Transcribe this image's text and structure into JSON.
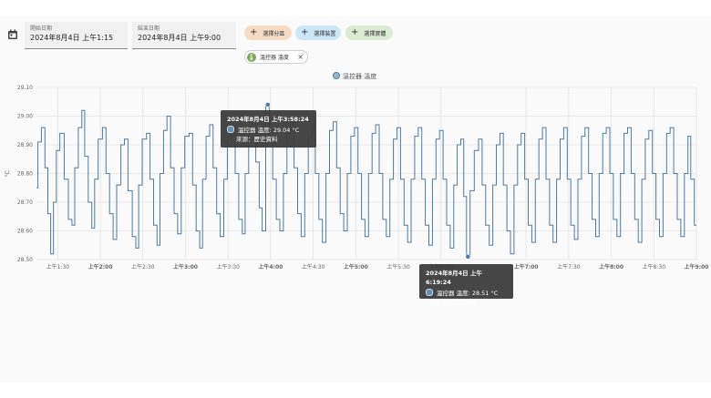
{
  "controls": {
    "start": {
      "label": "開始日期",
      "value": "2024年8月4日 上午1:15"
    },
    "end": {
      "label": "結束日期",
      "value": "2024年8月4日 上午9:00"
    },
    "chips": [
      {
        "label": "選擇分區",
        "icon": "plus-icon",
        "color": "#f6dcc4"
      },
      {
        "label": "選擇裝置",
        "icon": "plus-icon",
        "color": "#cde7f7"
      },
      {
        "label": "選擇實體",
        "icon": "plus-icon",
        "color": "#dcebd4"
      }
    ],
    "selected_entity": {
      "label": "溫控器 溫度",
      "icon": "thermometer-icon",
      "remove": "×"
    }
  },
  "tooltips": [
    {
      "title": "2024年8月4日 上午3:58:24",
      "line1": "溫控器 溫度: 29.04 °C",
      "line2": "來源：歷史資料"
    },
    {
      "title": "2024年8月4日 上午6:19:24",
      "line1": "溫控器 溫度: 28.51 °C",
      "line2": "來源：歷史資料"
    }
  ],
  "chart_data": {
    "type": "line",
    "legend": "溫控器 溫度",
    "legend_position": "top-center",
    "ylabel": "°C",
    "ylim": [
      28.5,
      29.1
    ],
    "y_ticks": [
      "28.50",
      "28.60",
      "28.70",
      "28.80",
      "28.90",
      "29.00",
      "29.10"
    ],
    "x_range": [
      "01:15",
      "09:00"
    ],
    "x_ticks": [
      {
        "t": "01:30",
        "label": "上午1:30",
        "bold": false
      },
      {
        "t": "02:00",
        "label": "上午2:00",
        "bold": true
      },
      {
        "t": "02:30",
        "label": "上午2:30",
        "bold": false
      },
      {
        "t": "03:00",
        "label": "上午3:00",
        "bold": true
      },
      {
        "t": "03:30",
        "label": "上午3:30",
        "bold": false
      },
      {
        "t": "04:00",
        "label": "上午4:00",
        "bold": true
      },
      {
        "t": "04:30",
        "label": "上午4:30",
        "bold": false
      },
      {
        "t": "05:00",
        "label": "上午5:00",
        "bold": true
      },
      {
        "t": "05:30",
        "label": "上午5:30",
        "bold": false
      },
      {
        "t": "06:00",
        "label": "上午6:00",
        "bold": true
      },
      {
        "t": "07:00",
        "label": "上午7:00",
        "bold": true
      },
      {
        "t": "07:30",
        "label": "上午7:30",
        "bold": false
      },
      {
        "t": "08:00",
        "label": "上午8:00",
        "bold": true
      },
      {
        "t": "08:30",
        "label": "上午8:30",
        "bold": false
      },
      {
        "t": "09:00",
        "label": "上午9:00",
        "bold": true
      }
    ],
    "series": [
      {
        "name": "溫控器 溫度",
        "color": "#4f7a9e",
        "points": [
          [
            "01:15",
            28.75
          ],
          [
            "01:17",
            28.91
          ],
          [
            "01:20",
            28.96
          ],
          [
            "01:22",
            28.82
          ],
          [
            "01:24",
            28.66
          ],
          [
            "01:26",
            28.52
          ],
          [
            "01:28",
            28.7
          ],
          [
            "01:30",
            28.88
          ],
          [
            "01:33",
            28.94
          ],
          [
            "01:36",
            28.78
          ],
          [
            "01:39",
            28.64
          ],
          [
            "01:41",
            28.62
          ],
          [
            "01:43",
            28.82
          ],
          [
            "01:46",
            28.96
          ],
          [
            "01:48",
            29.02
          ],
          [
            "01:50",
            28.86
          ],
          [
            "01:53",
            28.7
          ],
          [
            "01:55",
            28.61
          ],
          [
            "01:57",
            28.78
          ],
          [
            "02:00",
            28.92
          ],
          [
            "02:03",
            28.96
          ],
          [
            "02:05",
            28.8
          ],
          [
            "02:08",
            28.66
          ],
          [
            "02:10",
            28.57
          ],
          [
            "02:13",
            28.76
          ],
          [
            "02:16",
            28.9
          ],
          [
            "02:18",
            28.92
          ],
          [
            "02:21",
            28.74
          ],
          [
            "02:24",
            28.58
          ],
          [
            "02:26",
            28.54
          ],
          [
            "02:28",
            28.76
          ],
          [
            "02:31",
            28.92
          ],
          [
            "02:34",
            28.94
          ],
          [
            "02:36",
            28.78
          ],
          [
            "02:39",
            28.62
          ],
          [
            "02:41",
            28.55
          ],
          [
            "02:43",
            28.8
          ],
          [
            "02:46",
            28.95
          ],
          [
            "02:48",
            29.0
          ],
          [
            "02:51",
            28.82
          ],
          [
            "02:53",
            28.66
          ],
          [
            "02:56",
            28.59
          ],
          [
            "02:58",
            28.82
          ],
          [
            "03:01",
            28.93
          ],
          [
            "03:04",
            28.94
          ],
          [
            "03:06",
            28.76
          ],
          [
            "03:09",
            28.6
          ],
          [
            "03:11",
            28.54
          ],
          [
            "03:13",
            28.78
          ],
          [
            "03:16",
            28.93
          ],
          [
            "03:18",
            28.97
          ],
          [
            "03:21",
            28.82
          ],
          [
            "03:23",
            28.66
          ],
          [
            "03:26",
            28.58
          ],
          [
            "03:28",
            28.78
          ],
          [
            "03:31",
            28.92
          ],
          [
            "03:34",
            28.96
          ],
          [
            "03:36",
            28.8
          ],
          [
            "03:39",
            28.64
          ],
          [
            "03:41",
            28.59
          ],
          [
            "03:43",
            28.8
          ],
          [
            "03:46",
            28.94
          ],
          [
            "03:48",
            28.98
          ],
          [
            "03:51",
            28.84
          ],
          [
            "03:53",
            28.68
          ],
          [
            "03:55",
            28.6
          ],
          [
            "03:58",
            29.04
          ],
          [
            "04:00",
            28.92
          ],
          [
            "04:03",
            28.78
          ],
          [
            "04:05",
            28.64
          ],
          [
            "04:08",
            28.6
          ],
          [
            "04:10",
            28.8
          ],
          [
            "04:13",
            28.94
          ],
          [
            "04:15",
            28.98
          ],
          [
            "04:18",
            28.82
          ],
          [
            "04:20",
            28.66
          ],
          [
            "04:23",
            28.58
          ],
          [
            "04:25",
            28.8
          ],
          [
            "04:28",
            28.93
          ],
          [
            "04:30",
            28.96
          ],
          [
            "04:33",
            28.8
          ],
          [
            "04:35",
            28.64
          ],
          [
            "04:38",
            28.56
          ],
          [
            "04:40",
            28.8
          ],
          [
            "04:43",
            28.95
          ],
          [
            "04:45",
            28.98
          ],
          [
            "04:48",
            28.82
          ],
          [
            "04:50",
            28.66
          ],
          [
            "04:53",
            28.6
          ],
          [
            "04:55",
            28.8
          ],
          [
            "04:58",
            28.93
          ],
          [
            "05:00",
            28.96
          ],
          [
            "05:03",
            28.8
          ],
          [
            "05:05",
            28.64
          ],
          [
            "05:08",
            28.58
          ],
          [
            "05:10",
            28.8
          ],
          [
            "05:13",
            28.94
          ],
          [
            "05:15",
            28.97
          ],
          [
            "05:18",
            28.8
          ],
          [
            "05:20",
            28.64
          ],
          [
            "05:23",
            28.58
          ],
          [
            "05:25",
            28.78
          ],
          [
            "05:28",
            28.92
          ],
          [
            "05:30",
            28.96
          ],
          [
            "05:33",
            28.78
          ],
          [
            "05:35",
            28.62
          ],
          [
            "05:38",
            28.56
          ],
          [
            "05:40",
            28.78
          ],
          [
            "05:43",
            28.93
          ],
          [
            "05:45",
            28.96
          ],
          [
            "05:48",
            28.78
          ],
          [
            "05:50",
            28.62
          ],
          [
            "05:53",
            28.55
          ],
          [
            "05:55",
            28.78
          ],
          [
            "05:58",
            28.92
          ],
          [
            "06:00",
            28.95
          ],
          [
            "06:03",
            28.78
          ],
          [
            "06:05",
            28.62
          ],
          [
            "06:08",
            28.54
          ],
          [
            "06:10",
            28.76
          ],
          [
            "06:13",
            28.9
          ],
          [
            "06:15",
            28.92
          ],
          [
            "06:17",
            28.72
          ],
          [
            "06:19",
            28.51
          ],
          [
            "06:22",
            28.74
          ],
          [
            "06:25",
            28.88
          ],
          [
            "06:28",
            28.92
          ],
          [
            "06:30",
            28.76
          ],
          [
            "06:33",
            28.62
          ],
          [
            "06:35",
            28.55
          ],
          [
            "06:38",
            28.76
          ],
          [
            "06:40",
            28.9
          ],
          [
            "06:43",
            28.94
          ],
          [
            "06:45",
            28.76
          ],
          [
            "06:48",
            28.6
          ],
          [
            "06:50",
            28.52
          ],
          [
            "06:53",
            28.76
          ],
          [
            "06:55",
            28.9
          ],
          [
            "06:58",
            28.94
          ],
          [
            "07:00",
            28.78
          ],
          [
            "07:03",
            28.62
          ],
          [
            "07:05",
            28.56
          ],
          [
            "07:08",
            28.78
          ],
          [
            "07:10",
            28.92
          ],
          [
            "07:13",
            28.96
          ],
          [
            "07:15",
            28.78
          ],
          [
            "07:18",
            28.62
          ],
          [
            "07:20",
            28.56
          ],
          [
            "07:23",
            28.78
          ],
          [
            "07:25",
            28.92
          ],
          [
            "07:28",
            28.96
          ],
          [
            "07:30",
            28.78
          ],
          [
            "07:33",
            28.62
          ],
          [
            "07:35",
            28.57
          ],
          [
            "07:38",
            28.78
          ],
          [
            "07:40",
            28.93
          ],
          [
            "07:43",
            28.96
          ],
          [
            "07:45",
            28.8
          ],
          [
            "07:48",
            28.64
          ],
          [
            "07:50",
            28.58
          ],
          [
            "07:53",
            28.8
          ],
          [
            "07:55",
            28.94
          ],
          [
            "07:58",
            28.96
          ],
          [
            "08:00",
            28.8
          ],
          [
            "08:03",
            28.64
          ],
          [
            "08:05",
            28.58
          ],
          [
            "08:08",
            28.8
          ],
          [
            "08:10",
            28.94
          ],
          [
            "08:13",
            28.96
          ],
          [
            "08:15",
            28.8
          ],
          [
            "08:18",
            28.64
          ],
          [
            "08:20",
            28.56
          ],
          [
            "08:23",
            28.78
          ],
          [
            "08:25",
            28.92
          ],
          [
            "08:28",
            28.95
          ],
          [
            "08:30",
            28.8
          ],
          [
            "08:33",
            28.64
          ],
          [
            "08:35",
            28.58
          ],
          [
            "08:38",
            28.8
          ],
          [
            "08:40",
            28.94
          ],
          [
            "08:43",
            28.96
          ],
          [
            "08:45",
            28.8
          ],
          [
            "08:48",
            28.64
          ],
          [
            "08:50",
            28.58
          ],
          [
            "08:53",
            28.8
          ],
          [
            "08:55",
            28.93
          ],
          [
            "08:57",
            28.78
          ],
          [
            "09:00",
            28.62
          ]
        ]
      }
    ],
    "highlighted": [
      {
        "t": "03:58",
        "value": 29.04
      },
      {
        "t": "06:19",
        "value": 28.51
      }
    ]
  }
}
